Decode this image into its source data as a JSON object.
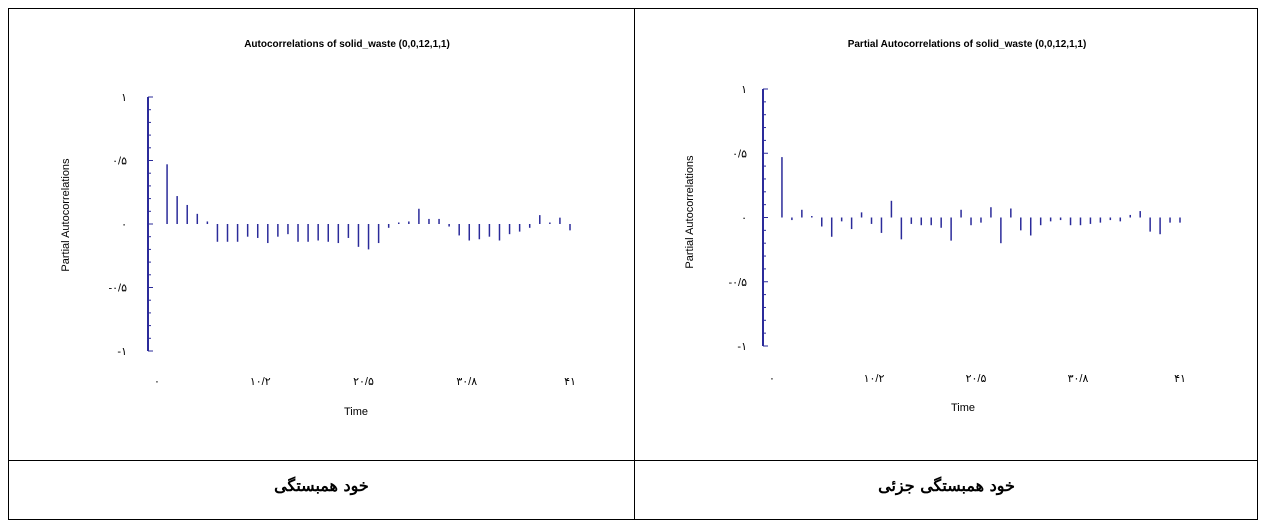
{
  "captions": {
    "left": "خود همبستگی",
    "right": "خود همبستگی جزئی"
  },
  "chart_data": [
    {
      "type": "bar",
      "title": "Autocorrelations of solid_waste (0,0,12,1,1)",
      "xlabel": "Time",
      "ylabel": "Partial Autocorrelations",
      "ylim": [
        -1,
        1
      ],
      "xlim": [
        0,
        41
      ],
      "yticks": [
        "-۱",
        "-۰/۵",
        "۰",
        "۰/۵",
        "۱"
      ],
      "xticks": [
        "۰",
        "۱۰/۲",
        "۲۰/۵",
        "۳۰/۸",
        "۴۱"
      ],
      "color": "#2b2b9a",
      "x": [
        1,
        2,
        3,
        4,
        5,
        6,
        7,
        8,
        9,
        10,
        11,
        12,
        13,
        14,
        15,
        16,
        17,
        18,
        19,
        20,
        21,
        22,
        23,
        24,
        25,
        26,
        27,
        28,
        29,
        30,
        31,
        32,
        33,
        34,
        35,
        36,
        37,
        38,
        39,
        40,
        41
      ],
      "values": [
        0.47,
        0.22,
        0.15,
        0.08,
        0.02,
        -0.14,
        -0.14,
        -0.14,
        -0.1,
        -0.11,
        -0.15,
        -0.1,
        -0.08,
        -0.14,
        -0.14,
        -0.13,
        -0.14,
        -0.15,
        -0.11,
        -0.18,
        -0.2,
        -0.15,
        -0.03,
        0.01,
        0.02,
        0.12,
        0.04,
        0.04,
        -0.02,
        -0.09,
        -0.13,
        -0.12,
        -0.1,
        -0.13,
        -0.08,
        -0.06,
        -0.03,
        0.07,
        0.01,
        0.05,
        -0.05
      ]
    },
    {
      "type": "bar",
      "title": "Partial Autocorrelations of solid_waste (0,0,12,1,1)",
      "xlabel": "Time",
      "ylabel": "Partial Autocorrelations",
      "ylim": [
        -1,
        1
      ],
      "xlim": [
        0,
        41
      ],
      "yticks": [
        "-۱",
        "-۰/۵",
        "۰",
        "۰/۵",
        "۱"
      ],
      "xticks": [
        "۰",
        "۱۰/۲",
        "۲۰/۵",
        "۳۰/۸",
        "۴۱"
      ],
      "color": "#2b2b9a",
      "x": [
        1,
        2,
        3,
        4,
        5,
        6,
        7,
        8,
        9,
        10,
        11,
        12,
        13,
        14,
        15,
        16,
        17,
        18,
        19,
        20,
        21,
        22,
        23,
        24,
        25,
        26,
        27,
        28,
        29,
        30,
        31,
        32,
        33,
        34,
        35,
        36,
        37,
        38,
        39,
        40,
        41
      ],
      "values": [
        0.47,
        -0.02,
        0.06,
        0.01,
        -0.07,
        -0.15,
        -0.03,
        -0.09,
        0.04,
        -0.05,
        -0.12,
        0.13,
        -0.17,
        -0.05,
        -0.06,
        -0.06,
        -0.08,
        -0.18,
        0.06,
        -0.06,
        -0.04,
        0.08,
        -0.2,
        0.07,
        -0.1,
        -0.14,
        -0.06,
        -0.03,
        -0.02,
        -0.06,
        -0.06,
        -0.05,
        -0.04,
        -0.02,
        -0.03,
        0.02,
        0.05,
        -0.11,
        -0.13,
        -0.04,
        -0.04
      ]
    }
  ]
}
